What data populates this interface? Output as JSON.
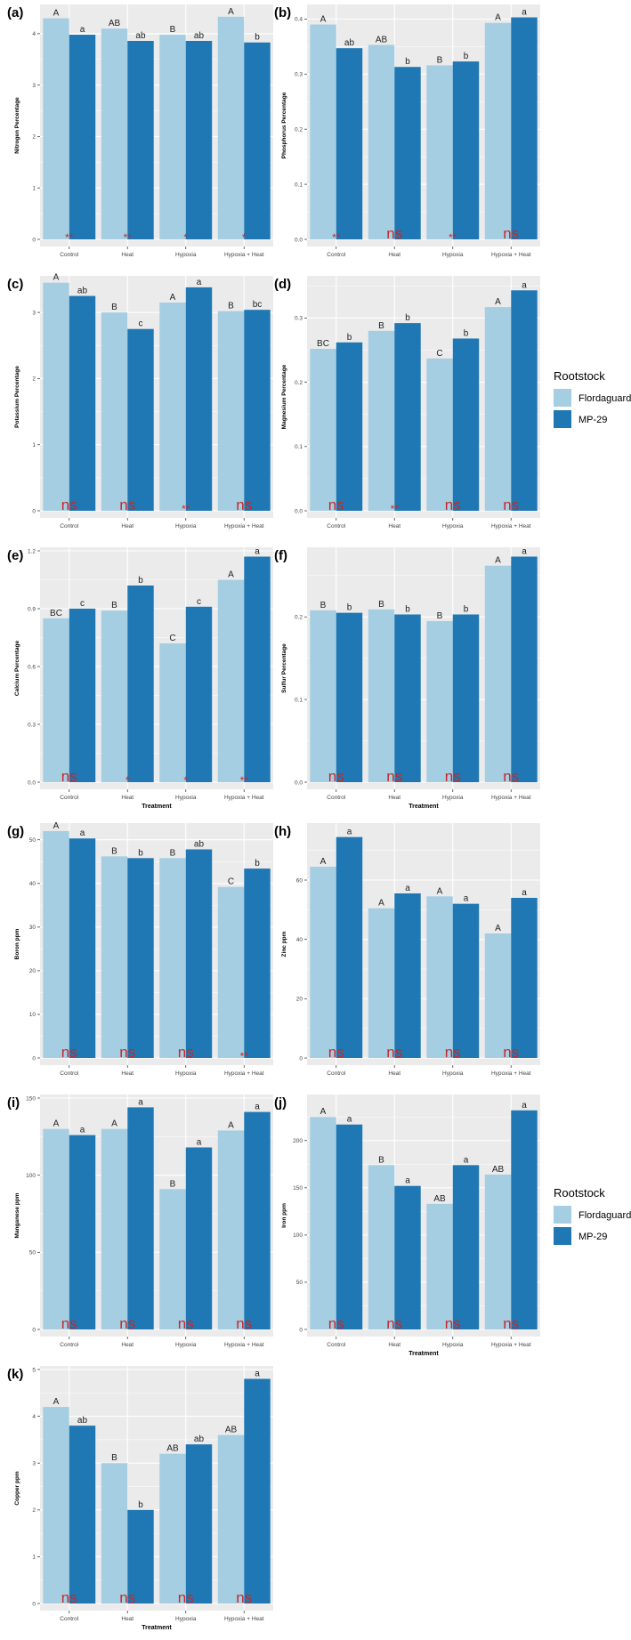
{
  "colors": {
    "flordaguard": "#a6cee3",
    "mp29": "#1f78b4",
    "panel_bg": "#ebebeb",
    "grid": "#ffffff",
    "sig": "#c62828"
  },
  "legend": {
    "title": "Rootstock",
    "labels": [
      "Flordaguard",
      "MP-29"
    ]
  },
  "chart_data": [
    {
      "panel": "(a)",
      "type": "bar",
      "ylabel": "Nitrogen Percentage",
      "xlabel": "",
      "ylim": [
        0,
        4.5
      ],
      "ticks": [
        0,
        1,
        2,
        3,
        4
      ],
      "categories": [
        "Control",
        "Heat",
        "Hypoxia",
        "Hypoxia + Heat"
      ],
      "series": [
        {
          "name": "Flordaguard",
          "values": [
            4.3,
            4.1,
            3.98,
            4.33
          ],
          "letters": [
            "A",
            "AB",
            "B",
            "A"
          ]
        },
        {
          "name": "MP-29",
          "values": [
            3.98,
            3.86,
            3.86,
            3.83
          ],
          "letters": [
            "a",
            "ab",
            "ab",
            "b"
          ]
        }
      ],
      "significance": [
        "**",
        "**",
        "*",
        "*"
      ]
    },
    {
      "panel": "(b)",
      "type": "bar",
      "ylabel": "Phosphorus Percentage",
      "xlabel": "",
      "ylim": [
        0,
        0.42
      ],
      "ticks": [
        0.0,
        0.1,
        0.2,
        0.3,
        0.4
      ],
      "categories": [
        "Control",
        "Heat",
        "Hypoxia",
        "Hypoxia + Heat"
      ],
      "series": [
        {
          "name": "Flordaguard",
          "values": [
            0.39,
            0.353,
            0.316,
            0.393
          ],
          "letters": [
            "A",
            "AB",
            "B",
            "A"
          ]
        },
        {
          "name": "MP-29",
          "values": [
            0.347,
            0.313,
            0.323,
            0.403
          ],
          "letters": [
            "ab",
            "b",
            "b",
            "a"
          ]
        }
      ],
      "significance": [
        "**",
        "ns",
        "**",
        "ns"
      ]
    },
    {
      "panel": "(c)",
      "type": "bar",
      "ylabel": "Potassium Percentage",
      "xlabel": "",
      "ylim": [
        0,
        3.5
      ],
      "ticks": [
        0,
        1,
        2,
        3
      ],
      "categories": [
        "Control",
        "Heat",
        "Hypoxia",
        "Hypoxia + Heat"
      ],
      "series": [
        {
          "name": "Flordaguard",
          "values": [
            3.45,
            3.0,
            3.15,
            3.02
          ],
          "letters": [
            "A",
            "B",
            "A",
            "B"
          ]
        },
        {
          "name": "MP-29",
          "values": [
            3.25,
            2.75,
            3.38,
            3.04
          ],
          "letters": [
            "ab",
            "c",
            "a",
            "bc"
          ]
        }
      ],
      "significance": [
        "ns",
        "ns",
        "**",
        "ns"
      ]
    },
    {
      "panel": "(d)",
      "type": "bar",
      "ylabel": "Magnesium Percentage",
      "xlabel": "",
      "ylim": [
        0,
        0.36
      ],
      "ticks": [
        0.0,
        0.1,
        0.2,
        0.3
      ],
      "categories": [
        "Control",
        "Heat",
        "Hypoxia",
        "Hypoxia + Heat"
      ],
      "series": [
        {
          "name": "Flordaguard",
          "values": [
            0.252,
            0.28,
            0.237,
            0.317
          ],
          "letters": [
            "BC",
            "B",
            "C",
            "A"
          ]
        },
        {
          "name": "MP-29",
          "values": [
            0.262,
            0.292,
            0.268,
            0.343
          ],
          "letters": [
            "b",
            "b",
            "b",
            "a"
          ]
        }
      ],
      "significance": [
        "ns",
        "**",
        "ns",
        "ns"
      ]
    },
    {
      "panel": "(e)",
      "type": "bar",
      "ylabel": "Calcium Percentage",
      "xlabel": "Treatment",
      "ylim": [
        0,
        1.2
      ],
      "ticks": [
        0.0,
        0.3,
        0.6,
        0.9,
        1.2
      ],
      "categories": [
        "Control",
        "Heat",
        "Hypoxia",
        "Hypoxia + Heat"
      ],
      "series": [
        {
          "name": "Flordaguard",
          "values": [
            0.85,
            0.89,
            0.72,
            1.05
          ],
          "letters": [
            "BC",
            "B",
            "C",
            "A"
          ]
        },
        {
          "name": "MP-29",
          "values": [
            0.9,
            1.02,
            0.91,
            1.17
          ],
          "letters": [
            "c",
            "b",
            "c",
            "a"
          ]
        }
      ],
      "significance": [
        "ns",
        "*",
        "*",
        "**"
      ]
    },
    {
      "panel": "(f)",
      "type": "bar",
      "ylabel": "Sulfur Percentage",
      "xlabel": "Treatment",
      "ylim": [
        0,
        0.28
      ],
      "ticks": [
        0.0,
        0.1,
        0.2
      ],
      "categories": [
        "Control",
        "Heat",
        "Hypoxia",
        "Hypoxia + Heat"
      ],
      "series": [
        {
          "name": "Flordaguard",
          "values": [
            0.208,
            0.209,
            0.195,
            0.262
          ],
          "letters": [
            "B",
            "B",
            "B",
            "A"
          ]
        },
        {
          "name": "MP-29",
          "values": [
            0.205,
            0.203,
            0.203,
            0.273
          ],
          "letters": [
            "b",
            "b",
            "b",
            "a"
          ]
        }
      ],
      "significance": [
        "ns",
        "ns",
        "ns",
        "ns"
      ]
    },
    {
      "panel": "(g)",
      "type": "bar",
      "ylabel": "Boron ppm",
      "xlabel": "",
      "ylim": [
        0,
        53
      ],
      "ticks": [
        0,
        10,
        20,
        30,
        40,
        50
      ],
      "categories": [
        "Control",
        "Heat",
        "Hypoxia",
        "Hypoxia + Heat"
      ],
      "series": [
        {
          "name": "Flordaguard",
          "values": [
            52,
            46.2,
            45.8,
            39.2
          ],
          "letters": [
            "A",
            "B",
            "B",
            "C"
          ]
        },
        {
          "name": "MP-29",
          "values": [
            50.3,
            45.8,
            47.8,
            43.4
          ],
          "letters": [
            "a",
            "b",
            "ab",
            "b"
          ]
        }
      ],
      "significance": [
        "ns",
        "ns",
        "ns",
        "**"
      ]
    },
    {
      "panel": "(h)",
      "type": "bar",
      "ylabel": "Zinc ppm",
      "xlabel": "",
      "ylim": [
        0,
        78
      ],
      "ticks": [
        0,
        20,
        40,
        60
      ],
      "categories": [
        "Control",
        "Heat",
        "Hypoxia",
        "Hypoxia + Heat"
      ],
      "series": [
        {
          "name": "Flordaguard",
          "values": [
            64.5,
            50.5,
            54.5,
            42
          ],
          "letters": [
            "A",
            "A",
            "A",
            "A"
          ]
        },
        {
          "name": "MP-29",
          "values": [
            74.5,
            55.5,
            52,
            54
          ],
          "letters": [
            "a",
            "a",
            "a",
            "a"
          ]
        }
      ],
      "significance": [
        "ns",
        "ns",
        "ns",
        "ns"
      ]
    },
    {
      "panel": "(i)",
      "type": "bar",
      "ylabel": "Manganese ppm",
      "xlabel": "",
      "ylim": [
        0,
        150
      ],
      "ticks": [
        0,
        50,
        100,
        150
      ],
      "categories": [
        "Control",
        "Heat",
        "Hypoxia",
        "Hypoxia + Heat"
      ],
      "series": [
        {
          "name": "Flordaguard",
          "values": [
            130,
            130,
            91,
            129
          ],
          "letters": [
            "A",
            "A",
            "B",
            "A"
          ]
        },
        {
          "name": "MP-29",
          "values": [
            126,
            144,
            118,
            141
          ],
          "letters": [
            "a",
            "a",
            "a",
            "a"
          ]
        }
      ],
      "significance": [
        "ns",
        "ns",
        "ns",
        "ns"
      ]
    },
    {
      "panel": "(j)",
      "type": "bar",
      "ylabel": "Iron ppm",
      "xlabel": "Treatment",
      "ylim": [
        0,
        245
      ],
      "ticks": [
        0,
        50,
        100,
        150,
        200
      ],
      "categories": [
        "Control",
        "Heat",
        "Hypoxia",
        "Hypoxia + Heat"
      ],
      "series": [
        {
          "name": "Flordaguard",
          "values": [
            225,
            174,
            133,
            164
          ],
          "letters": [
            "A",
            "B",
            "AB",
            "AB"
          ]
        },
        {
          "name": "MP-29",
          "values": [
            217,
            152,
            174,
            232
          ],
          "letters": [
            "a",
            "a",
            "a",
            "a"
          ]
        }
      ],
      "significance": [
        "ns",
        "ns",
        "ns",
        "ns"
      ]
    },
    {
      "panel": "(k)",
      "type": "bar",
      "ylabel": "Copper ppm",
      "xlabel": "Treatment",
      "ylim": [
        0,
        5
      ],
      "ticks": [
        0,
        1,
        2,
        3,
        4,
        5
      ],
      "categories": [
        "Control",
        "Heat",
        "Hypoxia",
        "Hypoxia + Heat"
      ],
      "series": [
        {
          "name": "Flordaguard",
          "values": [
            4.2,
            3.0,
            3.2,
            3.6
          ],
          "letters": [
            "A",
            "B",
            "AB",
            "AB"
          ]
        },
        {
          "name": "MP-29",
          "values": [
            3.8,
            2.0,
            3.4,
            4.8
          ],
          "letters": [
            "ab",
            "b",
            "ab",
            "a"
          ]
        }
      ],
      "significance": [
        "ns",
        "ns",
        "ns",
        "ns"
      ]
    }
  ]
}
